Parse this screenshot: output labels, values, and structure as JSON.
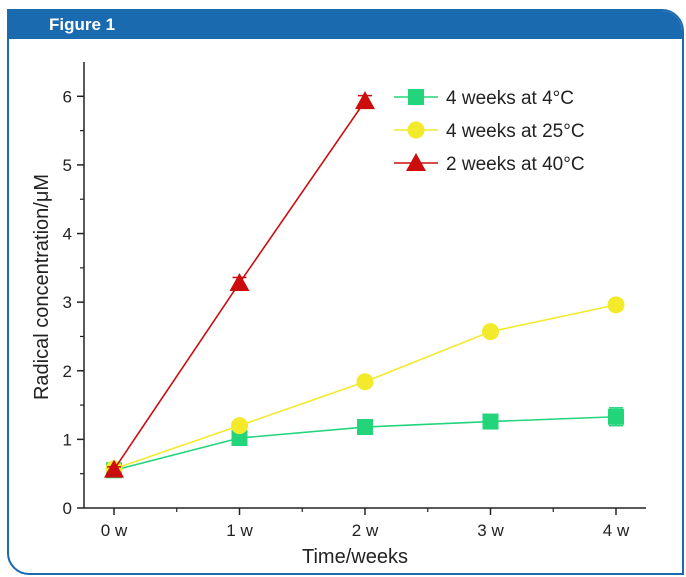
{
  "figure_label": "Figure 1",
  "colors": {
    "frame": "#1a6ab0",
    "green": "#22d47a",
    "yellow": "#f2ea2a",
    "red": "#cc0d0d"
  },
  "chart_data": {
    "type": "line",
    "title": "",
    "xlabel": "Time/weeks",
    "ylabel": "Radical concentration/μM",
    "categories": [
      "0 w",
      "1 w",
      "2 w",
      "3 w",
      "4 w"
    ],
    "x": [
      0,
      1,
      2,
      3,
      4
    ],
    "ylim": [
      0,
      6.5
    ],
    "yticks": [
      0,
      1,
      2,
      3,
      4,
      5,
      6
    ],
    "ytick_labels": [
      "0",
      "1",
      "2",
      "3",
      "4",
      "5",
      "6"
    ],
    "grid": false,
    "legend_position": "top-right",
    "series": [
      {
        "name": "4 weeks at 4°C",
        "marker": "square",
        "color": "#22d47a",
        "x": [
          0,
          1,
          2,
          3,
          4
        ],
        "values": [
          0.55,
          1.02,
          1.18,
          1.26,
          1.33
        ],
        "errors": [
          0.05,
          0.07,
          0.07,
          0.07,
          0.13
        ]
      },
      {
        "name": "4 weeks at 25°C",
        "marker": "circle",
        "color": "#f2ea2a",
        "x": [
          0,
          1,
          2,
          3,
          4
        ],
        "values": [
          0.57,
          1.2,
          1.84,
          2.57,
          2.96
        ],
        "errors": [
          0.04,
          0.06,
          0.06,
          0.07,
          0.07
        ]
      },
      {
        "name": "2 weeks at 40°C",
        "marker": "triangle",
        "color": "#cc0d0d",
        "x": [
          0,
          1,
          2
        ],
        "values": [
          0.56,
          3.28,
          5.93
        ],
        "errors": [
          0.04,
          0.08,
          0.08
        ]
      }
    ]
  }
}
